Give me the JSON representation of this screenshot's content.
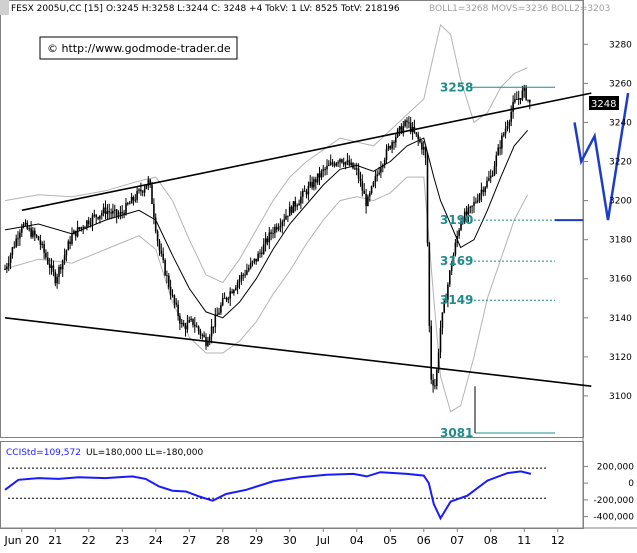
{
  "header": {
    "instrument": "FESX 2005U,CC [15]",
    "quote": "O:3245 H:3258 L:3244 C: 3248 +4 TokV: 1 LV: 8525 TotV: 218196",
    "indicators": "BOLL1=3268 MOVS=3236 BOLL2=3203"
  },
  "copyright": "© http://www.godmode-trader.de",
  "last_price_tag": "3248",
  "colors": {
    "level_text": "#1f8c8c",
    "level_line": "#1f8c8c",
    "candles": "#000000",
    "bollinger": "#b4b4b4",
    "moving_average": "#000000",
    "trendlines": "#000000",
    "projection": "#1e3cc8",
    "cci_line": "#1a1aff"
  },
  "chart_data": [
    {
      "type": "candlestick",
      "title": "",
      "ylim": [
        3080,
        3295
      ],
      "yticks": [
        3100,
        3120,
        3140,
        3160,
        3180,
        3200,
        3220,
        3240,
        3260,
        3280
      ],
      "xlabels": [
        "Jun 20",
        "21",
        "22",
        "23",
        "24",
        "27",
        "28",
        "29",
        "30",
        "Jul",
        "04",
        "05",
        "06",
        "07",
        "08",
        "11",
        "12"
      ],
      "levels": [
        {
          "label": "3258",
          "value": 3258
        },
        {
          "label": "3190",
          "value": 3190
        },
        {
          "label": "3169",
          "value": 3169
        },
        {
          "label": "3149",
          "value": 3149
        },
        {
          "label": "3081",
          "value": 3081
        }
      ],
      "close_path": [
        [
          0,
          3165
        ],
        [
          0.5,
          3188
        ],
        [
          1.0,
          3180
        ],
        [
          1.5,
          3160
        ],
        [
          2.0,
          3182
        ],
        [
          2.5,
          3190
        ],
        [
          3.0,
          3195
        ],
        [
          3.4,
          3192
        ],
        [
          3.8,
          3200
        ],
        [
          4.3,
          3210
        ],
        [
          4.6,
          3175
        ],
        [
          5.0,
          3150
        ],
        [
          5.3,
          3135
        ],
        [
          5.6,
          3138
        ],
        [
          6.0,
          3128
        ],
        [
          6.5,
          3148
        ],
        [
          7.0,
          3160
        ],
        [
          7.5,
          3170
        ],
        [
          8.0,
          3185
        ],
        [
          8.5,
          3195
        ],
        [
          9.0,
          3205
        ],
        [
          9.5,
          3215
        ],
        [
          10.0,
          3222
        ],
        [
          10.5,
          3215
        ],
        [
          10.8,
          3198
        ],
        [
          11.2,
          3218
        ],
        [
          11.6,
          3232
        ],
        [
          12.0,
          3240
        ],
        [
          12.3,
          3232
        ],
        [
          12.55,
          3225
        ],
        [
          12.7,
          3110
        ],
        [
          12.85,
          3105
        ],
        [
          13.0,
          3135
        ],
        [
          13.3,
          3165
        ],
        [
          13.6,
          3190
        ],
        [
          13.9,
          3195
        ],
        [
          14.2,
          3205
        ],
        [
          14.5,
          3212
        ],
        [
          14.8,
          3230
        ],
        [
          15.2,
          3250
        ],
        [
          15.5,
          3256
        ],
        [
          15.7,
          3248
        ]
      ],
      "moving_average": [
        [
          0,
          3185
        ],
        [
          1,
          3188
        ],
        [
          2,
          3183
        ],
        [
          3,
          3190
        ],
        [
          4,
          3195
        ],
        [
          4.5,
          3190
        ],
        [
          5,
          3172
        ],
        [
          5.5,
          3155
        ],
        [
          6,
          3143
        ],
        [
          6.5,
          3140
        ],
        [
          7,
          3148
        ],
        [
          7.5,
          3160
        ],
        [
          8,
          3175
        ],
        [
          8.5,
          3188
        ],
        [
          9,
          3198
        ],
        [
          9.5,
          3208
        ],
        [
          10,
          3216
        ],
        [
          10.5,
          3218
        ],
        [
          11,
          3215
        ],
        [
          11.5,
          3220
        ],
        [
          12,
          3228
        ],
        [
          12.5,
          3232
        ],
        [
          12.8,
          3212
        ],
        [
          13.0,
          3200
        ],
        [
          13.3,
          3188
        ],
        [
          13.6,
          3176
        ],
        [
          14.0,
          3180
        ],
        [
          14.4,
          3195
        ],
        [
          14.8,
          3212
        ],
        [
          15.2,
          3228
        ],
        [
          15.6,
          3236
        ]
      ],
      "bollinger_upper": [
        [
          0,
          3200
        ],
        [
          1,
          3203
        ],
        [
          2,
          3202
        ],
        [
          3,
          3205
        ],
        [
          4,
          3210
        ],
        [
          4.5,
          3212
        ],
        [
          5,
          3200
        ],
        [
          5.5,
          3180
        ],
        [
          6,
          3162
        ],
        [
          6.5,
          3158
        ],
        [
          7,
          3170
        ],
        [
          7.5,
          3185
        ],
        [
          8,
          3200
        ],
        [
          8.5,
          3212
        ],
        [
          9,
          3220
        ],
        [
          9.5,
          3226
        ],
        [
          10,
          3232
        ],
        [
          10.5,
          3230
        ],
        [
          11,
          3228
        ],
        [
          11.5,
          3236
        ],
        [
          12,
          3244
        ],
        [
          12.5,
          3252
        ],
        [
          12.8,
          3275
        ],
        [
          13.0,
          3290
        ],
        [
          13.3,
          3285
        ],
        [
          13.6,
          3262
        ],
        [
          14.0,
          3240
        ],
        [
          14.4,
          3245
        ],
        [
          14.8,
          3258
        ],
        [
          15.2,
          3265
        ],
        [
          15.6,
          3268
        ]
      ],
      "bollinger_lower": [
        [
          0,
          3165
        ],
        [
          1,
          3170
        ],
        [
          2,
          3168
        ],
        [
          3,
          3175
        ],
        [
          4,
          3182
        ],
        [
          4.5,
          3175
        ],
        [
          5,
          3148
        ],
        [
          5.5,
          3130
        ],
        [
          6,
          3122
        ],
        [
          6.5,
          3122
        ],
        [
          7,
          3128
        ],
        [
          7.5,
          3138
        ],
        [
          8,
          3152
        ],
        [
          8.5,
          3164
        ],
        [
          9,
          3178
        ],
        [
          9.5,
          3190
        ],
        [
          10,
          3200
        ],
        [
          10.5,
          3202
        ],
        [
          11,
          3200
        ],
        [
          11.5,
          3204
        ],
        [
          12,
          3212
        ],
        [
          12.5,
          3212
        ],
        [
          12.8,
          3150
        ],
        [
          13.0,
          3110
        ],
        [
          13.3,
          3092
        ],
        [
          13.6,
          3095
        ],
        [
          14.0,
          3120
        ],
        [
          14.4,
          3150
        ],
        [
          14.8,
          3170
        ],
        [
          15.2,
          3190
        ],
        [
          15.6,
          3203
        ]
      ],
      "upper_trendline": [
        [
          0.5,
          3195
        ],
        [
          17.5,
          3255
        ]
      ],
      "lower_trendline": [
        [
          0,
          3140
        ],
        [
          17.5,
          3105
        ]
      ],
      "projection_path": [
        [
          17.0,
          3240
        ],
        [
          17.2,
          3220
        ],
        [
          17.6,
          3233
        ],
        [
          18.0,
          3190
        ],
        [
          18.6,
          3255
        ]
      ]
    },
    {
      "type": "line",
      "title": "",
      "name": "CCIStd=109,572",
      "bounds": "UL=180,000 LL=-180,000",
      "ylim": [
        -500000,
        300000
      ],
      "yticks": [
        {
          "value": 200000,
          "label": "200,000"
        },
        {
          "value": 0,
          "label": "0"
        },
        {
          "value": -200000,
          "label": "-200,000"
        },
        {
          "value": -400000,
          "label": "-400,000"
        }
      ],
      "ul": 180000,
      "ll": -180000,
      "x": [
        0,
        0.4,
        1.0,
        1.6,
        2.2,
        3.0,
        3.8,
        4.2,
        4.6,
        5.0,
        5.4,
        5.8,
        6.2,
        6.6,
        7.2,
        8.0,
        8.8,
        9.6,
        10.4,
        10.8,
        11.2,
        12.0,
        12.5,
        12.65,
        12.8,
        13.0,
        13.3,
        13.8,
        14.4,
        15.0,
        15.4,
        15.7
      ],
      "values": [
        -80000,
        40000,
        60000,
        50000,
        70000,
        60000,
        80000,
        50000,
        -40000,
        -90000,
        -100000,
        -160000,
        -210000,
        -130000,
        -80000,
        20000,
        70000,
        100000,
        110000,
        80000,
        130000,
        110000,
        90000,
        0,
        -250000,
        -420000,
        -220000,
        -150000,
        30000,
        120000,
        140000,
        110000
      ]
    }
  ]
}
